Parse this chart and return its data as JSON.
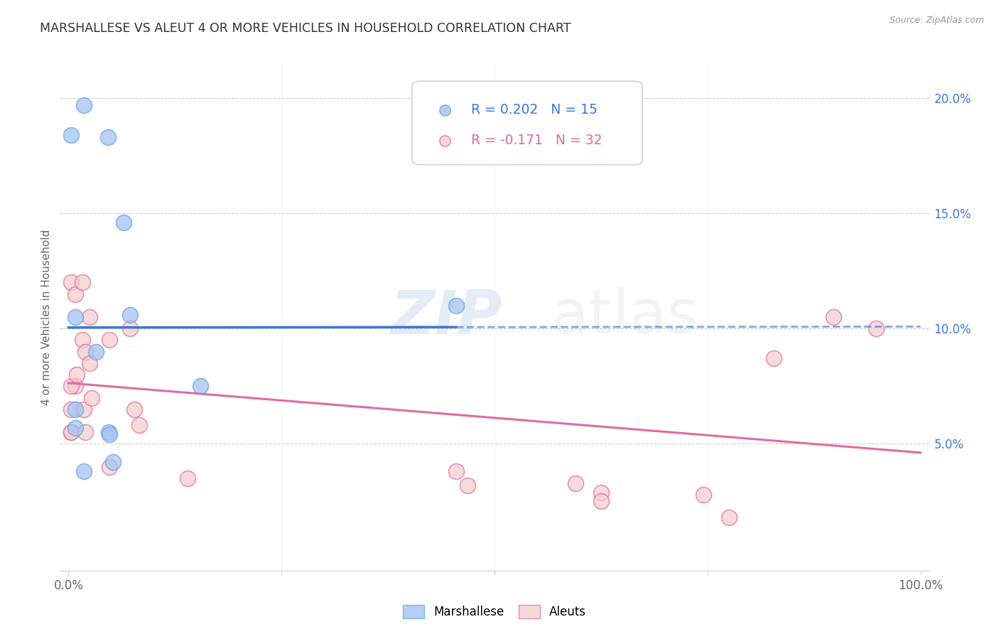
{
  "title": "MARSHALLESE VS ALEUT 4 OR MORE VEHICLES IN HOUSEHOLD CORRELATION CHART",
  "source": "Source: ZipAtlas.com",
  "ylabel": "4 or more Vehicles in Household",
  "xlim": [
    -0.01,
    1.01
  ],
  "ylim": [
    -0.005,
    0.215
  ],
  "marshallese_color": "#a4c2f4",
  "marshallese_edge_color": "#6fa8dc",
  "aleuts_color": "#f4cccc",
  "aleuts_edge_color": "#e06c9f",
  "marshallese_line_color": "#3c78d8",
  "aleuts_line_color": "#e06c9f",
  "legend_r_marshallese": "R = 0.202",
  "legend_n_marshallese": "N = 15",
  "legend_r_aleuts": "R = -0.171",
  "legend_n_aleuts": "N = 32",
  "marshallese_x": [
    0.003,
    0.018,
    0.046,
    0.065,
    0.008,
    0.072,
    0.032,
    0.155,
    0.455,
    0.008,
    0.047,
    0.048,
    0.052,
    0.008,
    0.018
  ],
  "marshallese_y": [
    0.184,
    0.197,
    0.183,
    0.146,
    0.105,
    0.106,
    0.09,
    0.075,
    0.11,
    0.065,
    0.055,
    0.054,
    0.042,
    0.057,
    0.038
  ],
  "aleuts_x": [
    0.003,
    0.008,
    0.016,
    0.025,
    0.016,
    0.02,
    0.025,
    0.008,
    0.003,
    0.003,
    0.003,
    0.003,
    0.01,
    0.02,
    0.018,
    0.027,
    0.048,
    0.072,
    0.077,
    0.083,
    0.048,
    0.14,
    0.455,
    0.468,
    0.595,
    0.625,
    0.625,
    0.745,
    0.775,
    0.828,
    0.898,
    0.948
  ],
  "aleuts_y": [
    0.12,
    0.115,
    0.12,
    0.105,
    0.095,
    0.09,
    0.085,
    0.075,
    0.075,
    0.065,
    0.055,
    0.055,
    0.08,
    0.055,
    0.065,
    0.07,
    0.095,
    0.1,
    0.065,
    0.058,
    0.04,
    0.035,
    0.038,
    0.032,
    0.033,
    0.029,
    0.025,
    0.028,
    0.018,
    0.087,
    0.105,
    0.1
  ],
  "ytick_positions": [
    0.05,
    0.1,
    0.15,
    0.2
  ],
  "ytick_labels": [
    "5.0%",
    "10.0%",
    "15.0%",
    "20.0%"
  ],
  "xtick_positions": [
    0.0,
    0.25,
    0.5,
    0.75,
    1.0
  ],
  "xtick_labels": [
    "0.0%",
    "",
    "",
    "",
    "100.0%"
  ],
  "background_color": "#ffffff",
  "grid_color": "#cccccc"
}
